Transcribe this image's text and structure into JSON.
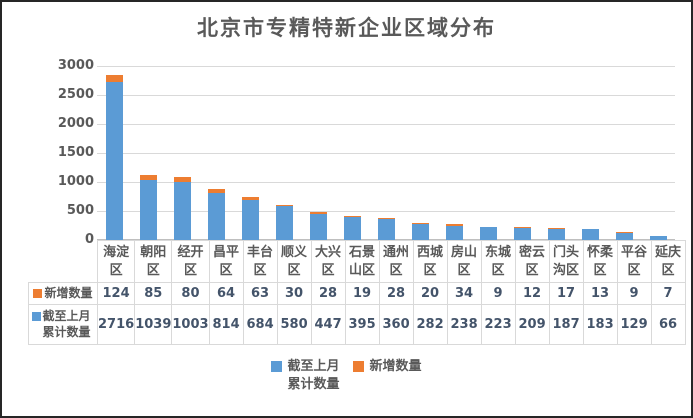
{
  "title": "北京市专精特新企业区域分布",
  "chart_data": {
    "type": "bar",
    "stacked": true,
    "title": "北京市专精特新企业区域分布",
    "categories": [
      "海淀区",
      "朝阳区",
      "经开区",
      "昌平区",
      "丰台区",
      "顺义区",
      "大兴区",
      "石景山区",
      "通州区",
      "西城区",
      "房山区",
      "东城区",
      "密云区",
      "门头沟区",
      "怀柔区",
      "平谷区",
      "延庆区"
    ],
    "series": [
      {
        "name": "截至上月累计数量",
        "color": "#5B9BD5",
        "values": [
          2716,
          1039,
          1003,
          814,
          684,
          580,
          447,
          395,
          360,
          282,
          238,
          223,
          209,
          187,
          183,
          129,
          66
        ]
      },
      {
        "name": "新增数量",
        "color": "#ED7D31",
        "values": [
          124,
          85,
          80,
          64,
          63,
          30,
          28,
          19,
          28,
          20,
          34,
          9,
          12,
          17,
          13,
          9,
          7
        ]
      }
    ],
    "xlabel": "",
    "ylabel": "",
    "ylim": [
      0,
      3000
    ],
    "yticks": [
      0,
      500,
      1000,
      1500,
      2000,
      2500,
      3000
    ],
    "grid": true,
    "legend_position": "bottom",
    "show_data_table": true,
    "table_row_order": [
      1,
      0
    ]
  },
  "colors": {
    "series_blue": "#5B9BD5",
    "series_orange": "#ED7D31",
    "gridline": "#D9D9D9",
    "axis_text": "#595959",
    "table_number_text": "#44546A",
    "table_border": "#D9D9D9",
    "frame_border": "#262626",
    "background": "#FFFFFF"
  }
}
